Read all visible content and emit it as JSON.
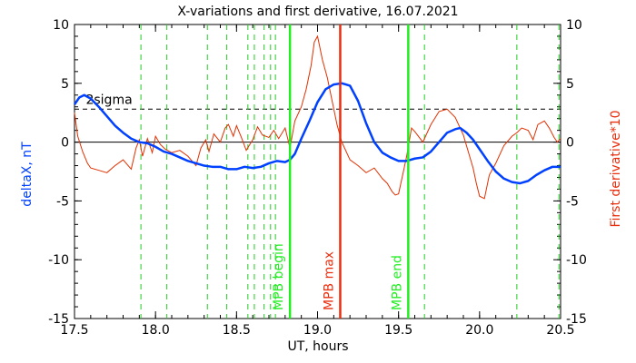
{
  "chart_data": {
    "type": "line",
    "title": "X-variations and first derivative, 16.07.2021",
    "xlabel": "UT, hours",
    "ylabel_left": "deltaX, nT",
    "ylabel_right": "First derivative*10",
    "xlim": [
      17.5,
      20.5
    ],
    "ylim": [
      -15,
      10
    ],
    "x_ticks": [
      "17.5",
      "18.0",
      "18.5",
      "19.0",
      "19.5",
      "20.0",
      "20.5"
    ],
    "y_ticks_left": [
      "-15",
      "-10",
      "-5",
      "0",
      "5",
      "10"
    ],
    "y_ticks_right": [
      "-15",
      "-10",
      "-5",
      "0",
      "5",
      "10"
    ],
    "colors": {
      "deltaX": "#0040ff",
      "derivative": "#e03000",
      "dashed_markers": "#22cc22",
      "mpb_begin_end": "#22ee22",
      "mpb_max": "#e83010",
      "sigma_line": "#000000",
      "zero_line": "#000000"
    },
    "sigma": {
      "label": "2sigma",
      "value": 2.8
    },
    "series": [
      {
        "name": "deltaX",
        "x": [
          17.5,
          17.53,
          17.56,
          17.6,
          17.65,
          17.7,
          17.75,
          17.8,
          17.85,
          17.9,
          17.95,
          18.0,
          18.05,
          18.1,
          18.15,
          18.2,
          18.25,
          18.3,
          18.35,
          18.4,
          18.45,
          18.5,
          18.55,
          18.6,
          18.65,
          18.7,
          18.75,
          18.8,
          18.83,
          18.86,
          18.9,
          18.95,
          19.0,
          19.05,
          19.1,
          19.15,
          19.2,
          19.25,
          19.3,
          19.35,
          19.4,
          19.45,
          19.5,
          19.55,
          19.6,
          19.65,
          19.7,
          19.75,
          19.8,
          19.85,
          19.88,
          19.92,
          19.96,
          20.0,
          20.05,
          20.1,
          20.15,
          20.2,
          20.25,
          20.3,
          20.35,
          20.4,
          20.45,
          20.5
        ],
        "y": [
          3.2,
          3.8,
          4.0,
          3.7,
          3.0,
          2.2,
          1.4,
          0.8,
          0.3,
          0.0,
          -0.1,
          -0.4,
          -0.8,
          -1.0,
          -1.3,
          -1.6,
          -1.8,
          -2.0,
          -2.1,
          -2.1,
          -2.3,
          -2.3,
          -2.1,
          -2.2,
          -2.1,
          -1.8,
          -1.6,
          -1.7,
          -1.5,
          -1.0,
          0.3,
          1.8,
          3.4,
          4.5,
          4.9,
          5.0,
          4.8,
          3.5,
          1.6,
          0.0,
          -0.9,
          -1.3,
          -1.6,
          -1.6,
          -1.4,
          -1.3,
          -0.8,
          0.0,
          0.8,
          1.1,
          1.2,
          0.8,
          0.2,
          -0.6,
          -1.6,
          -2.5,
          -3.1,
          -3.4,
          -3.5,
          -3.3,
          -2.8,
          -2.4,
          -2.1,
          -2.1
        ]
      },
      {
        "name": "First derivative*10",
        "x": [
          17.5,
          17.52,
          17.55,
          17.58,
          17.6,
          17.65,
          17.7,
          17.75,
          17.8,
          17.85,
          17.88,
          17.9,
          17.92,
          17.95,
          17.98,
          18.0,
          18.03,
          18.06,
          18.1,
          18.15,
          18.2,
          18.25,
          18.28,
          18.31,
          18.33,
          18.36,
          18.4,
          18.43,
          18.45,
          18.48,
          18.5,
          18.53,
          18.56,
          18.6,
          18.63,
          18.66,
          18.7,
          18.73,
          18.76,
          18.8,
          18.83,
          18.86,
          18.9,
          18.93,
          18.96,
          18.98,
          19.0,
          19.03,
          19.06,
          19.09,
          19.12,
          19.15,
          19.2,
          19.25,
          19.3,
          19.35,
          19.4,
          19.43,
          19.46,
          19.48,
          19.5,
          19.53,
          19.55,
          19.58,
          19.6,
          19.65,
          19.7,
          19.75,
          19.8,
          19.85,
          19.9,
          19.93,
          19.96,
          19.98,
          20.0,
          20.03,
          20.06,
          20.1,
          20.15,
          20.2,
          20.23,
          20.26,
          20.3,
          20.33,
          20.36,
          20.4,
          20.43,
          20.46,
          20.48,
          20.5
        ],
        "y": [
          2.5,
          0.5,
          -0.8,
          -1.8,
          -2.2,
          -2.4,
          -2.6,
          -2.0,
          -1.5,
          -2.3,
          -0.5,
          0.2,
          -1.2,
          0.3,
          -0.9,
          0.5,
          -0.2,
          -0.6,
          -0.9,
          -0.7,
          -1.2,
          -2.0,
          -0.5,
          0.2,
          -0.8,
          0.7,
          0.0,
          1.2,
          1.5,
          0.5,
          1.4,
          0.4,
          -0.7,
          0.2,
          1.3,
          0.6,
          0.4,
          1.0,
          0.3,
          1.2,
          -0.5,
          1.8,
          3.0,
          4.5,
          6.5,
          8.5,
          9.0,
          7.0,
          5.5,
          3.5,
          1.5,
          0.0,
          -1.5,
          -2.0,
          -2.6,
          -2.2,
          -3.1,
          -3.5,
          -4.2,
          -4.5,
          -4.4,
          -2.5,
          -1.2,
          1.2,
          0.9,
          0.0,
          1.5,
          2.6,
          2.8,
          2.1,
          0.6,
          -0.8,
          -2.2,
          -3.5,
          -4.6,
          -4.8,
          -2.8,
          -1.8,
          -0.3,
          0.5,
          0.8,
          1.2,
          1.0,
          0.2,
          1.5,
          1.8,
          1.2,
          0.4,
          0.0,
          0.3
        ]
      }
    ],
    "dashed_markers_x": [
      17.91,
      18.07,
      18.32,
      18.44,
      18.57,
      18.61,
      18.67,
      18.71,
      18.74,
      19.66,
      20.23,
      20.49
    ],
    "events": [
      {
        "label": "MPB begin",
        "x": 18.83,
        "kind": "mpb_begin_end"
      },
      {
        "label": "MPB max",
        "x": 19.14,
        "kind": "mpb_max"
      },
      {
        "label": "MPB end",
        "x": 19.56,
        "kind": "mpb_begin_end"
      }
    ]
  }
}
